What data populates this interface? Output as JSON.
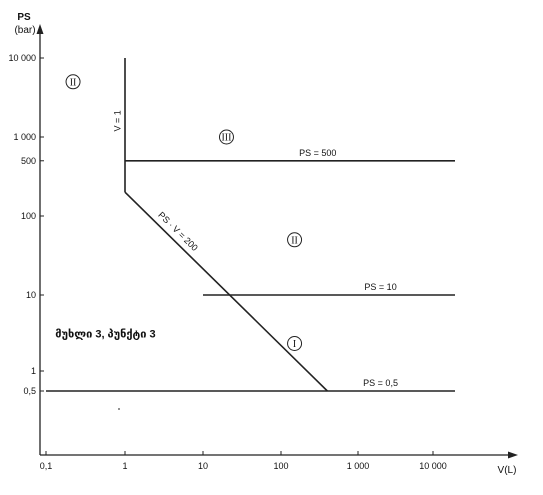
{
  "chart_data": {
    "type": "line",
    "x_scale": "log",
    "y_scale": "log",
    "xlabel": "V(L)",
    "ylabel": "PS",
    "ylabel_unit": "(bar)",
    "xlim": [
      0.1,
      20000
    ],
    "ylim": [
      0.5,
      10000
    ],
    "x_ticks": [
      {
        "value": 0.1,
        "label": "0,1"
      },
      {
        "value": 1,
        "label": "1"
      },
      {
        "value": 10,
        "label": "10"
      },
      {
        "value": 100,
        "label": "100"
      },
      {
        "value": 1000,
        "label": "1 000"
      },
      {
        "value": 10000,
        "label": "10 000"
      }
    ],
    "y_ticks": [
      {
        "value": 0.5,
        "label": "0,5"
      },
      {
        "value": 1,
        "label": "1"
      },
      {
        "value": 10,
        "label": "10"
      },
      {
        "value": 100,
        "label": "100"
      },
      {
        "value": 500,
        "label": "500"
      },
      {
        "value": 1000,
        "label": "1 000"
      },
      {
        "value": 10000,
        "label": "10 000"
      }
    ],
    "lines": [
      {
        "name": "PS = 500",
        "points": [
          [
            1,
            500
          ],
          [
            20000,
            500
          ]
        ],
        "label_at": [
          300,
          500
        ]
      },
      {
        "name": "PS = 10",
        "points": [
          [
            10,
            10
          ],
          [
            20000,
            10
          ]
        ],
        "label_at": [
          2000,
          10
        ]
      },
      {
        "name": "PS = 0,5",
        "points": [
          [
            0.1,
            0.5
          ],
          [
            20000,
            0.5
          ]
        ],
        "label_at": [
          2000,
          0.5
        ]
      },
      {
        "name": "V = 1",
        "points": [
          [
            1,
            200
          ],
          [
            1,
            10000
          ]
        ],
        "label_at": [
          0.98,
          1600
        ],
        "vertical": true
      },
      {
        "name": "PS · V = 200",
        "points": [
          [
            1,
            200
          ],
          [
            400,
            0.5
          ]
        ],
        "label_at": [
          4.5,
          60
        ],
        "slope_label": true
      }
    ],
    "regions": [
      {
        "label": "II",
        "x": 0.22,
        "y": 5000
      },
      {
        "label": "III",
        "x": 20,
        "y": 1000
      },
      {
        "label": "II",
        "x": 150,
        "y": 50
      },
      {
        "label": "I",
        "x": 150,
        "y": 2.3
      }
    ],
    "annotation": {
      "text": "მუხლი 3, პუნქტი 3",
      "x": 0.12,
      "y": 3
    }
  }
}
